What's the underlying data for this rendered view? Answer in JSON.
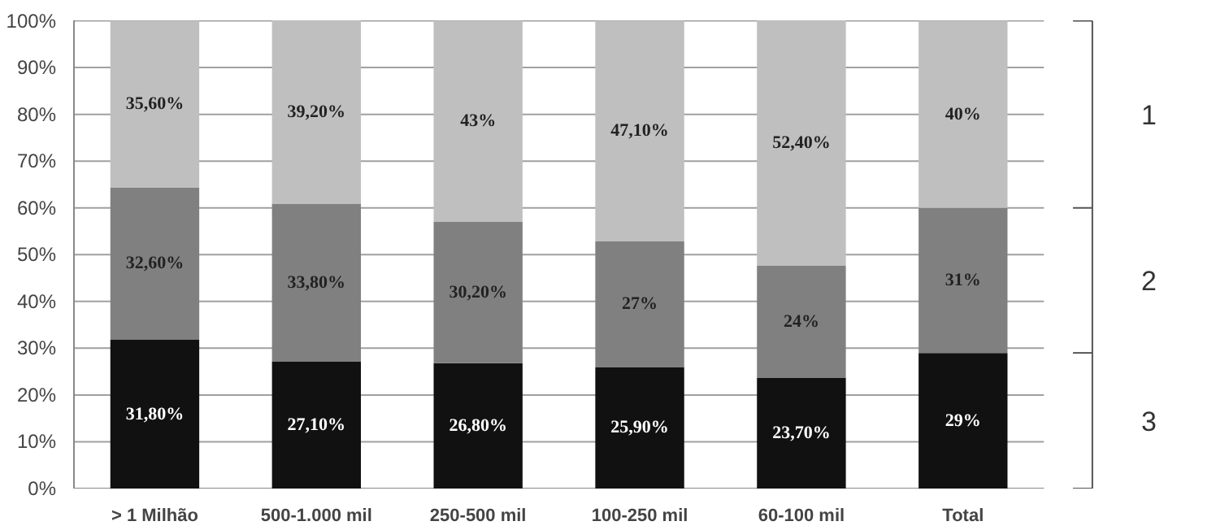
{
  "chart_data": {
    "type": "bar",
    "stacked": true,
    "categories": [
      "> 1 Milhão",
      "500-1.000 mil",
      "250-500 mil",
      "100-250 mil",
      "60-100 mil",
      "Total"
    ],
    "series": [
      {
        "name": "3",
        "color": "#111111",
        "values": [
          31.8,
          27.1,
          26.8,
          25.9,
          23.7,
          29
        ],
        "value_labels": [
          "31,80%",
          "27,10%",
          "26,80%",
          "25,90%",
          "23,70%",
          "29%"
        ]
      },
      {
        "name": "2",
        "color": "#808080",
        "values": [
          32.6,
          33.8,
          30.2,
          27,
          24,
          31
        ],
        "value_labels": [
          "32,60%",
          "33,80%",
          "30,20%",
          "27%",
          "24%",
          "31%"
        ]
      },
      {
        "name": "1",
        "color": "#bfbfbf",
        "values": [
          35.6,
          39.2,
          43,
          47.1,
          52.4,
          40
        ],
        "value_labels": [
          "35,60%",
          "39,20%",
          "43%",
          "47,10%",
          "52,40%",
          "40%"
        ]
      }
    ],
    "ylim": [
      0,
      100.1
    ],
    "yticks": [
      {
        "value": 0,
        "label": "0%"
      },
      {
        "value": 10,
        "label": "10%"
      },
      {
        "value": 20,
        "label": "20%"
      },
      {
        "value": 30,
        "label": "30%"
      },
      {
        "value": 40,
        "label": "40%"
      },
      {
        "value": 50,
        "label": "50%"
      },
      {
        "value": 60,
        "label": "60%"
      },
      {
        "value": 70,
        "label": "70%"
      },
      {
        "value": 80,
        "label": "80%"
      },
      {
        "value": 90,
        "label": "90%"
      },
      {
        "value": 100,
        "label": "100%"
      }
    ],
    "grid": "y",
    "legend": "right"
  }
}
